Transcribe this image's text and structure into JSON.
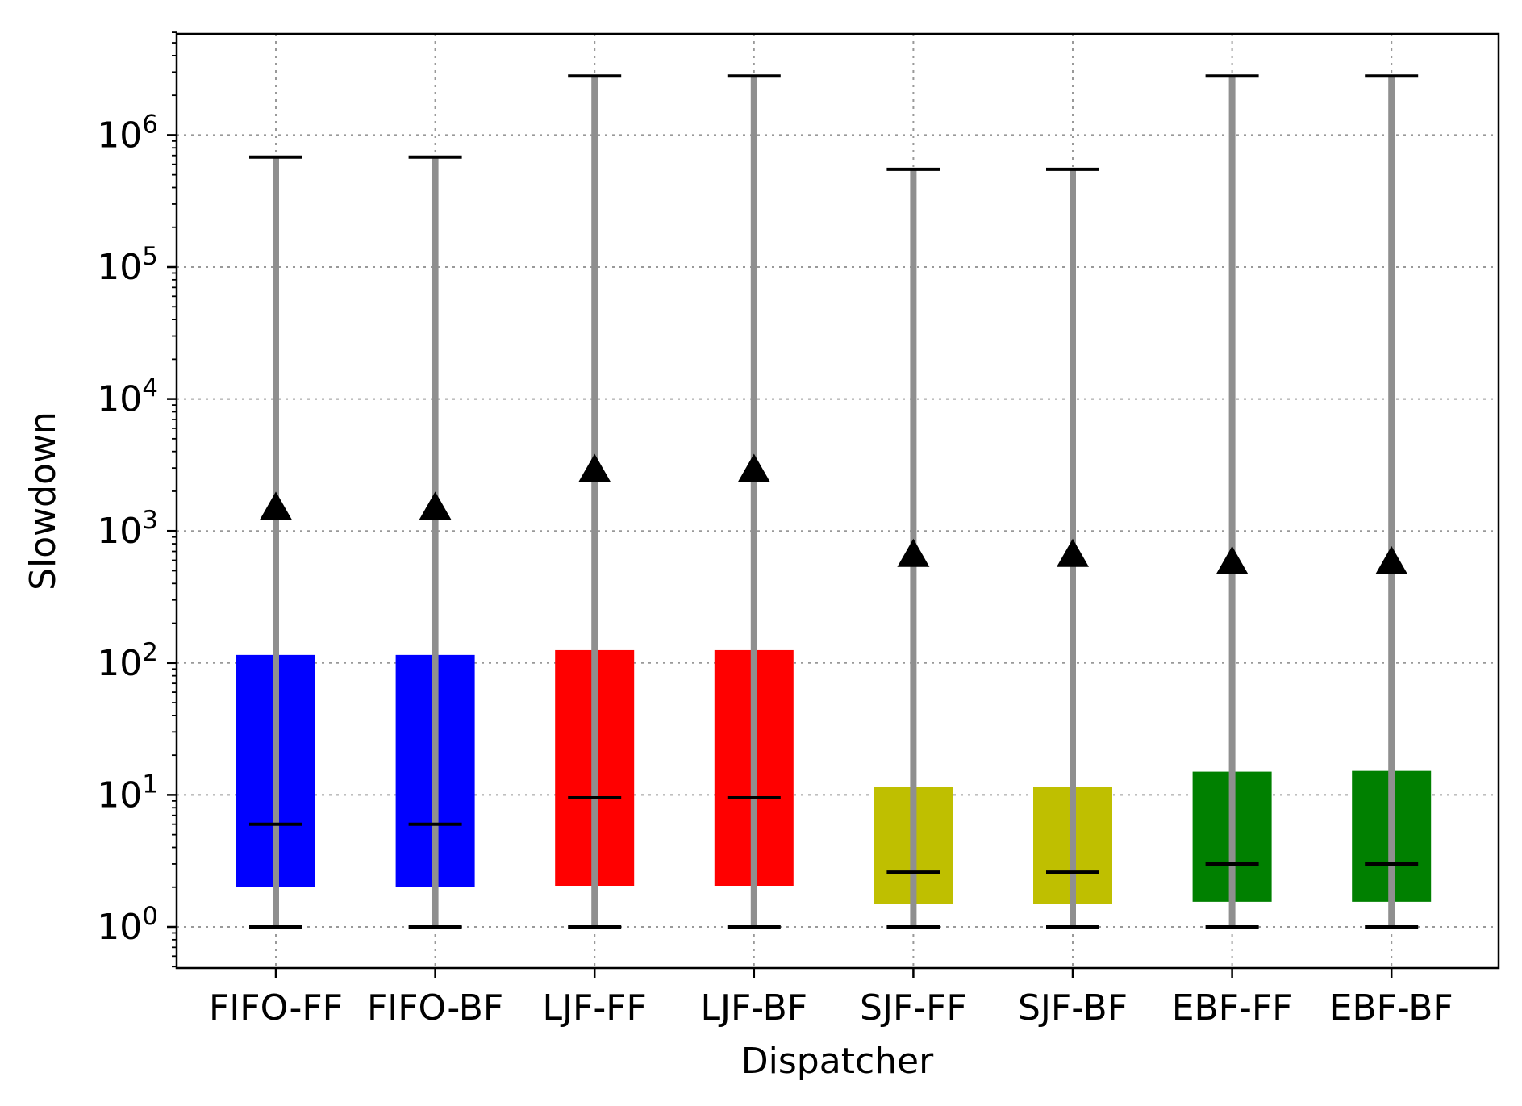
{
  "chart_data": {
    "type": "box",
    "xlabel": "Dispatcher",
    "ylabel": "Slowdown",
    "yscale": "log",
    "ylim": [
      0.5,
      6000000
    ],
    "ytick_values": [
      1,
      10,
      100,
      1000,
      10000,
      100000,
      1000000
    ],
    "ytick_base": "10",
    "ytick_exponents": [
      "0",
      "1",
      "2",
      "3",
      "4",
      "5",
      "6"
    ],
    "grid": true,
    "categories": [
      "FIFO-FF",
      "FIFO-BF",
      "LJF-FF",
      "LJF-BF",
      "SJF-FF",
      "SJF-BF",
      "EBF-FF",
      "EBF-BF"
    ],
    "series": [
      {
        "min": 1,
        "q1": 2.0,
        "median": 6.0,
        "q3": 115,
        "max": 680000,
        "mean": 1500,
        "color": "#0000ff"
      },
      {
        "min": 1,
        "q1": 2.0,
        "median": 6.0,
        "q3": 115,
        "max": 680000,
        "mean": 1500,
        "color": "#0000ff"
      },
      {
        "min": 1,
        "q1": 2.05,
        "median": 9.5,
        "q3": 125,
        "max": 2800000,
        "mean": 2900,
        "color": "#ff0000"
      },
      {
        "min": 1,
        "q1": 2.05,
        "median": 9.5,
        "q3": 125,
        "max": 2800000,
        "mean": 2900,
        "color": "#ff0000"
      },
      {
        "min": 1,
        "q1": 1.5,
        "median": 2.6,
        "q3": 11.5,
        "max": 550000,
        "mean": 660,
        "color": "#bfbf00"
      },
      {
        "min": 1,
        "q1": 1.5,
        "median": 2.6,
        "q3": 11.5,
        "max": 550000,
        "mean": 660,
        "color": "#bfbf00"
      },
      {
        "min": 1,
        "q1": 1.55,
        "median": 3.0,
        "q3": 15,
        "max": 2800000,
        "mean": 580,
        "color": "#008000"
      },
      {
        "min": 1,
        "q1": 1.55,
        "median": 3.0,
        "q3": 15.2,
        "max": 2800000,
        "mean": 580,
        "color": "#008000"
      }
    ],
    "whisker_color": "#8f8f8f"
  }
}
